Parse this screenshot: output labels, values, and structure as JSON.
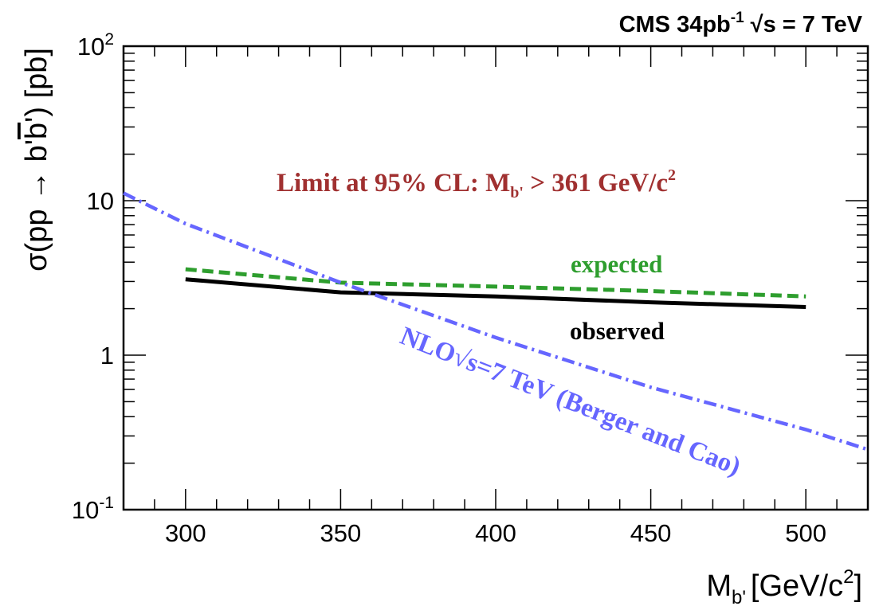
{
  "chart_data": {
    "type": "line",
    "header": {
      "experiment": "CMS",
      "lumi": "34pb",
      "lumi_exp": "-1",
      "sqrt_sym": "√",
      "energy": "s = 7 TeV"
    },
    "xlabel": {
      "main": "M",
      "sub": "b'",
      "unit": "[GeV/c",
      "unit_exp": "2",
      "close": "]"
    },
    "ylabel": {
      "prefix": "σ(pp → b'",
      "bbar": "b",
      "suffix": "') [pb]"
    },
    "xlim": [
      280,
      520
    ],
    "ylim": [
      0.1,
      100
    ],
    "yscale": "log",
    "x_ticks": [
      {
        "value": 300,
        "label": "300"
      },
      {
        "value": 350,
        "label": "350"
      },
      {
        "value": 400,
        "label": "400"
      },
      {
        "value": 450,
        "label": "450"
      },
      {
        "value": 500,
        "label": "500"
      }
    ],
    "y_ticks": [
      {
        "value": 0.1,
        "base": "10",
        "exp": "-1"
      },
      {
        "value": 1,
        "base": "1",
        "exp": ""
      },
      {
        "value": 10,
        "base": "10",
        "exp": ""
      },
      {
        "value": 100,
        "base": "10",
        "exp": "2"
      }
    ],
    "series": [
      {
        "name": "expected",
        "color": "#2e9e2e",
        "style": "dashed",
        "x": [
          300,
          350,
          400,
          450,
          500
        ],
        "y": [
          3.6,
          2.95,
          2.78,
          2.6,
          2.4
        ]
      },
      {
        "name": "observed",
        "color": "#000000",
        "style": "solid",
        "x": [
          300,
          350,
          400,
          450,
          500
        ],
        "y": [
          3.1,
          2.55,
          2.4,
          2.2,
          2.05
        ]
      },
      {
        "name": "NLO√s=7 TeV (Berger and Cao)",
        "color": "#6666ff",
        "style": "dashdot",
        "x": [
          280,
          300,
          350,
          400,
          450,
          500,
          520
        ],
        "y": [
          11.2,
          7.1,
          2.95,
          1.3,
          0.62,
          0.33,
          0.245
        ]
      }
    ],
    "annotations": {
      "limit": {
        "prefix": "Limit at 95% CL: M",
        "sub": "b'",
        "value": " > 361 GeV/c",
        "exp": "2",
        "color": "#a03030"
      },
      "expected_label": "expected",
      "observed_label": "observed",
      "nlo_label_a": "NLO",
      "nlo_label_sqrt": "√",
      "nlo_label_b": "s=7 TeV (Berger and Cao)"
    },
    "colors": {
      "expected": "#2e9e2e",
      "observed": "#000000",
      "nlo": "#6666ff",
      "limit_text": "#a03030"
    }
  }
}
